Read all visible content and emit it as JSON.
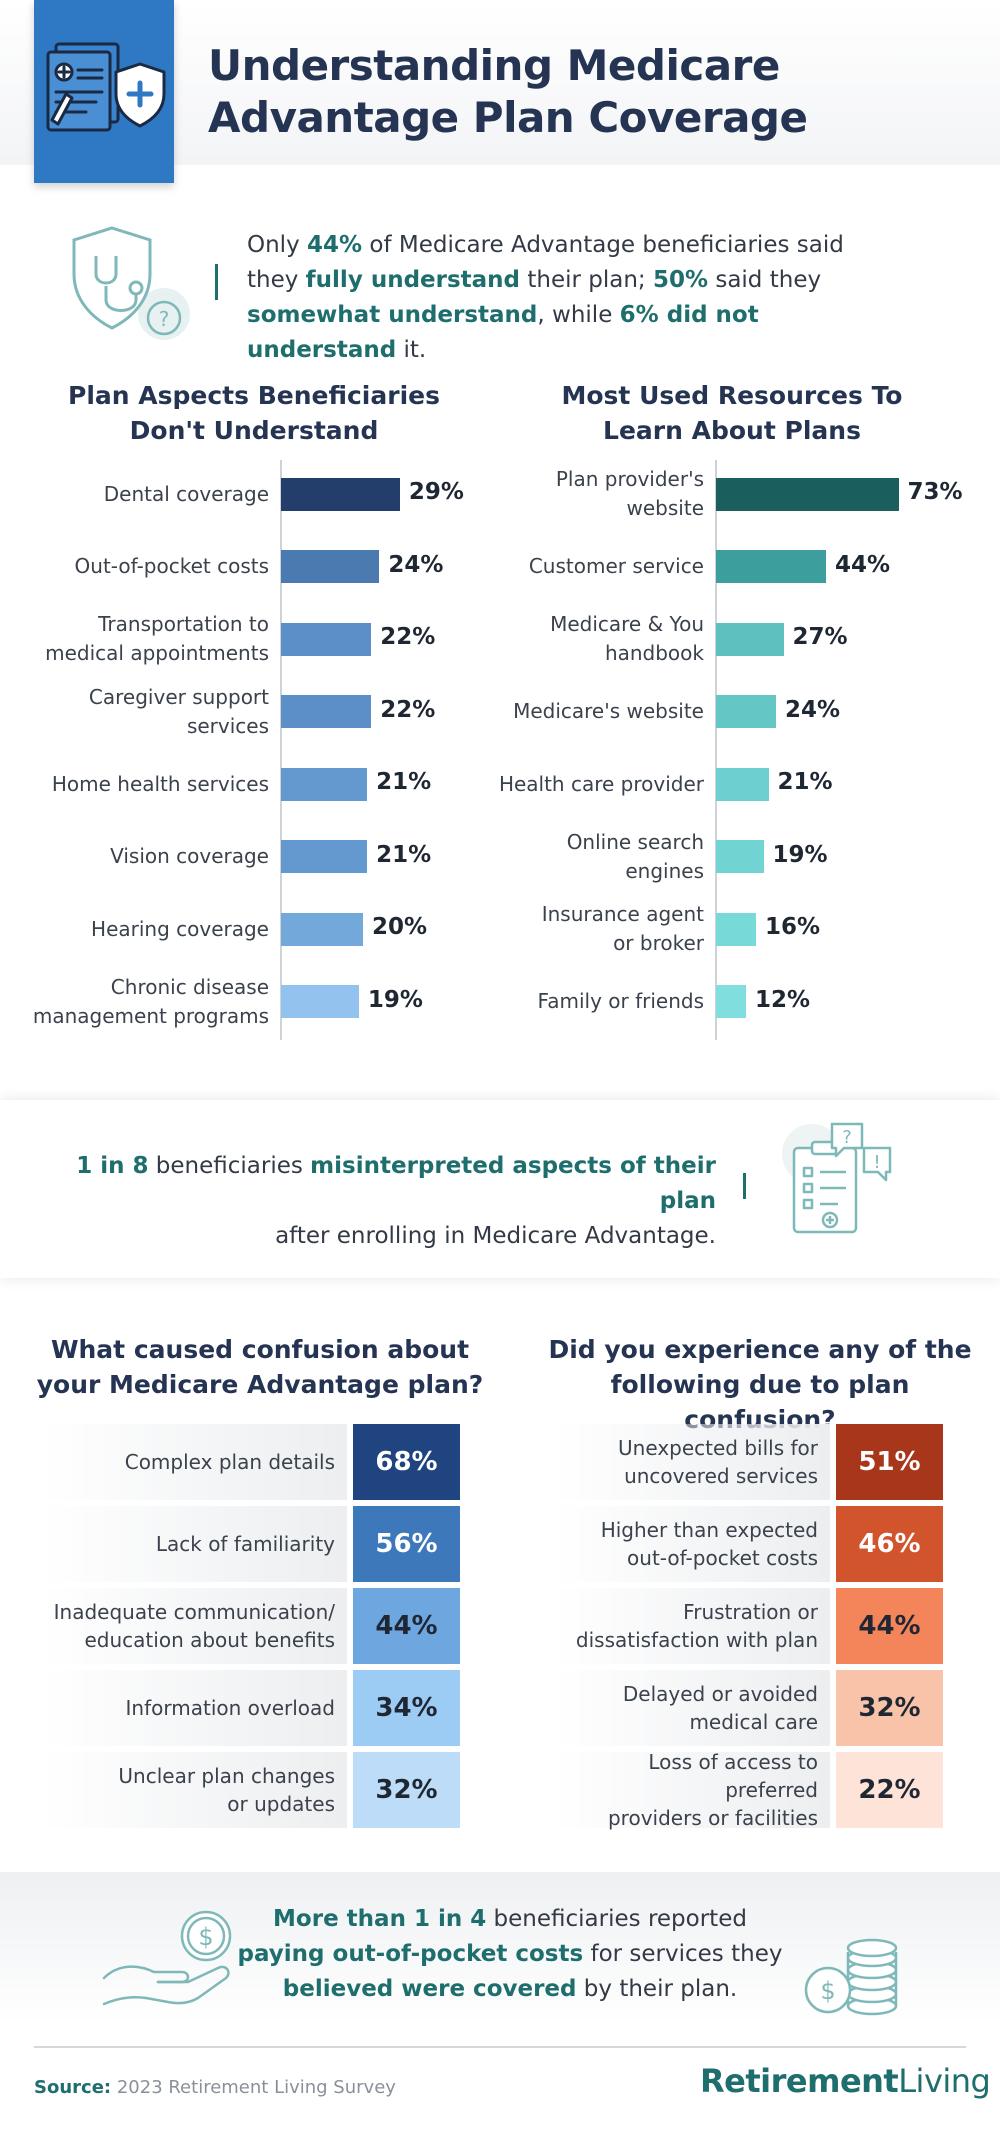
{
  "header": {
    "title_line1": "Understanding Medicare",
    "title_line2": "Advantage Plan Coverage"
  },
  "intro": {
    "p1": "Only ",
    "h1": "44%",
    "p2": " of Medicare Advantage beneficiaries said they ",
    "h2": "fully understand",
    "p3": " their plan; ",
    "h3": "50%",
    "p4": " said they ",
    "h4": "somewhat understand",
    "p5": ", while ",
    "h5": "6% did not understand",
    "p6": " it."
  },
  "mid": {
    "h1": "1 in 8",
    "p1": " beneficiaries ",
    "h2": "misinterpreted aspects of their plan",
    "line2": "after enrolling in Medicare Advantage."
  },
  "bottom": {
    "h1": "More than 1 in 4",
    "p1": " beneficiaries reported",
    "h2": "paying out-of-pocket costs",
    "p2": " for services they",
    "h3": "believed were covered",
    "p3": " by their plan."
  },
  "footer": {
    "source_label": "Source:",
    "source_text": " 2023 Retirement Living Survey",
    "brand_bold": "Retirement",
    "brand_thin": "Living"
  },
  "chart_data": [
    {
      "type": "bar",
      "orientation": "horizontal",
      "title": "Plan Aspects Beneficiaries Don't Understand",
      "categories": [
        "Dental coverage",
        "Out-of-pocket costs",
        "Transportation to medical appointments",
        "Caregiver support services",
        "Home health services",
        "Vision coverage",
        "Hearing coverage",
        "Chronic disease management programs"
      ],
      "category_lines": [
        [
          "Dental coverage"
        ],
        [
          "Out-of-pocket costs"
        ],
        [
          "Transportation to",
          "medical appointments"
        ],
        [
          "Caregiver support",
          "services"
        ],
        [
          "Home health services"
        ],
        [
          "Vision coverage"
        ],
        [
          "Hearing coverage"
        ],
        [
          "Chronic disease",
          "management programs"
        ]
      ],
      "values": [
        29,
        24,
        22,
        22,
        21,
        21,
        20,
        19
      ],
      "value_labels": [
        "29%",
        "24%",
        "22%",
        "22%",
        "21%",
        "21%",
        "20%",
        "19%"
      ],
      "colors": [
        "#233e6b",
        "#4a7ab0",
        "#5c8fc7",
        "#5c8fc7",
        "#6499d0",
        "#6499d0",
        "#72a8da",
        "#94c2ee"
      ],
      "unit": "%"
    },
    {
      "type": "bar",
      "orientation": "horizontal",
      "title": "Most Used Resources To Learn About Plans",
      "categories": [
        "Plan provider's website",
        "Customer service",
        "Medicare & You handbook",
        "Medicare's website",
        "Health care provider",
        "Online search engines",
        "Insurance agent or broker",
        "Family or friends"
      ],
      "category_lines": [
        [
          "Plan provider's",
          "website"
        ],
        [
          "Customer service"
        ],
        [
          "Medicare & You",
          "handbook"
        ],
        [
          "Medicare's website"
        ],
        [
          "Health care provider"
        ],
        [
          "Online search",
          "engines"
        ],
        [
          "Insurance agent",
          "or broker"
        ],
        [
          "Family or friends"
        ]
      ],
      "values": [
        73,
        44,
        27,
        24,
        21,
        19,
        16,
        12
      ],
      "value_labels": [
        "73%",
        "44%",
        "27%",
        "24%",
        "21%",
        "19%",
        "16%",
        "12%"
      ],
      "colors": [
        "#1a5e5e",
        "#3d9e9e",
        "#5fc0c0",
        "#65c6c6",
        "#6dcfcf",
        "#72d3d3",
        "#78d9d9",
        "#80dede"
      ],
      "unit": "%"
    },
    {
      "type": "table",
      "title": "What caused confusion about your Medicare Advantage plan?",
      "categories": [
        "Complex plan details",
        "Lack of familiarity",
        "Inadequate communication/ education about benefits",
        "Information overload",
        "Unclear plan changes or updates"
      ],
      "category_lines": [
        [
          "Complex plan details"
        ],
        [
          "Lack of familiarity"
        ],
        [
          "Inadequate communication/",
          "education about benefits"
        ],
        [
          "Information overload"
        ],
        [
          "Unclear plan changes",
          "or updates"
        ]
      ],
      "values": [
        68,
        56,
        44,
        34,
        32
      ],
      "value_labels": [
        "68%",
        "56%",
        "44%",
        "34%",
        "32%"
      ],
      "colors": [
        "#1f4480",
        "#3d78ba",
        "#6ea7e0",
        "#9ccbf4",
        "#bcdcf8"
      ],
      "text_colors": [
        "#ffffff",
        "#ffffff",
        "#1f2733",
        "#1f2733",
        "#1f2733"
      ],
      "unit": "%"
    },
    {
      "type": "table",
      "title": "Did you experience any of the following due to plan confusion?",
      "categories": [
        "Unexpected bills for uncovered services",
        "Higher than expected out-of-pocket costs",
        "Frustration or dissatisfaction with plan",
        "Delayed or avoided medical care",
        "Loss of access to preferred providers or facilities"
      ],
      "category_lines": [
        [
          "Unexpected bills for",
          "uncovered services"
        ],
        [
          "Higher than expected",
          "out-of-pocket costs"
        ],
        [
          "Frustration or",
          "dissatisfaction with plan"
        ],
        [
          "Delayed or avoided",
          "medical care"
        ],
        [
          "Loss of access to preferred",
          "providers or facilities"
        ]
      ],
      "values": [
        51,
        46,
        44,
        32,
        22
      ],
      "value_labels": [
        "51%",
        "46%",
        "44%",
        "32%",
        "22%"
      ],
      "colors": [
        "#a8361a",
        "#d2542d",
        "#f4855a",
        "#f9c3aa",
        "#fde3d8"
      ],
      "text_colors": [
        "#ffffff",
        "#ffffff",
        "#1f2733",
        "#1f2733",
        "#1f2733"
      ],
      "unit": "%"
    }
  ]
}
